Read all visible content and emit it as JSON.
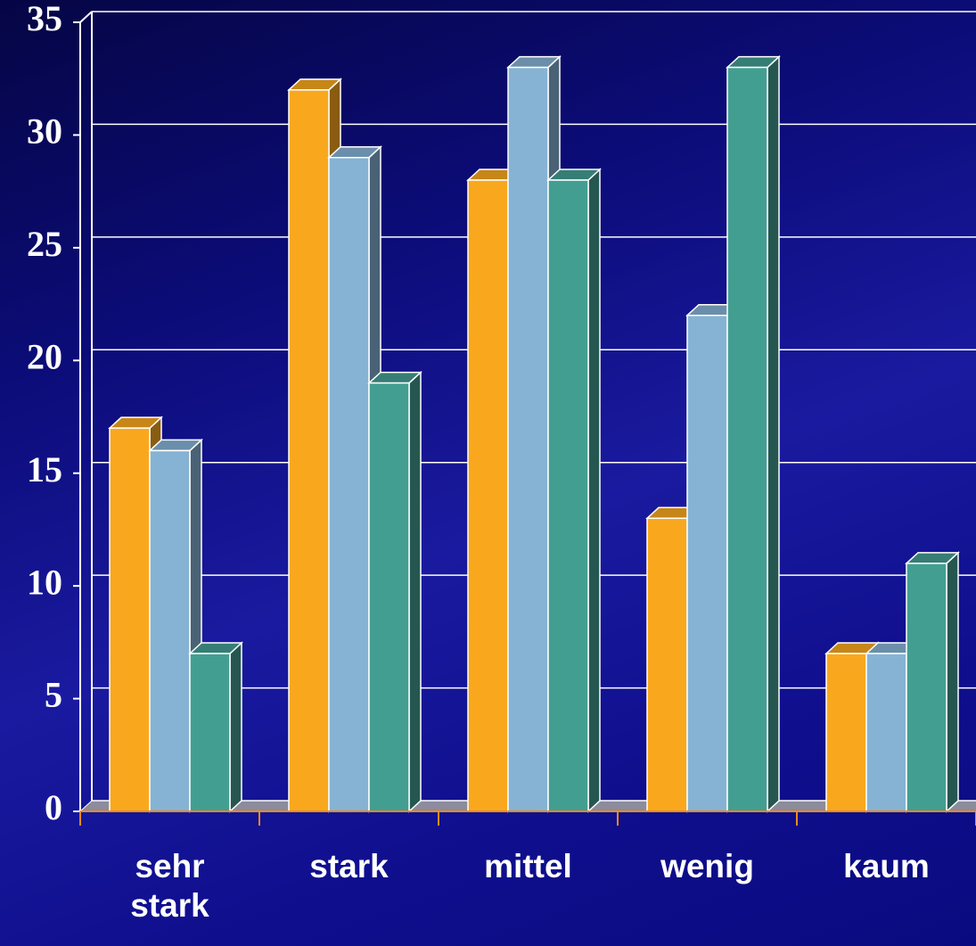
{
  "chart_data": {
    "type": "bar3d",
    "categories": [
      "sehr stark",
      "stark",
      "mittel",
      "wenig",
      "kaum"
    ],
    "series": [
      {
        "color": "#f9a81e",
        "values": [
          17,
          32,
          28,
          13,
          7
        ]
      },
      {
        "color": "#86b3d4",
        "values": [
          16,
          29,
          33,
          22,
          7
        ]
      },
      {
        "color": "#439e92",
        "values": [
          7,
          19,
          28,
          33,
          11
        ]
      }
    ],
    "ylim": [
      0,
      35
    ],
    "yticks": [
      0,
      5,
      10,
      15,
      20,
      25,
      30,
      35
    ],
    "grid": true
  }
}
